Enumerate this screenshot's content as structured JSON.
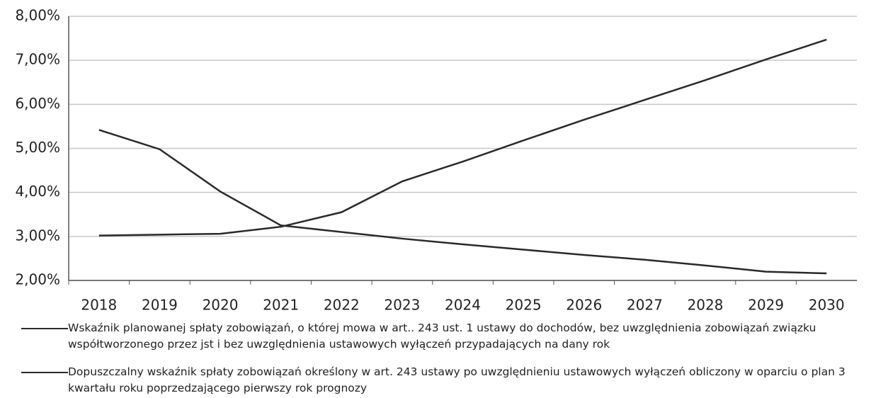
{
  "chart_data": {
    "type": "line",
    "categories": [
      "2018",
      "2019",
      "2020",
      "2021",
      "2022",
      "2023",
      "2024",
      "2025",
      "2026",
      "2027",
      "2028",
      "2029",
      "2030"
    ],
    "series": [
      {
        "name": "Wskaźnik planowanej spłaty zobowiązań, o której mowa w art.. 243 ust. 1 ustawy do dochodów, bez uwzględnienia zobowiązań związku współtworzonego przez jst i bez uwzględnienia ustawowych wyłączeń przypadających na dany rok",
        "color": "#2a2a2a",
        "values": [
          5.42,
          4.98,
          4.02,
          3.25,
          3.1,
          2.95,
          2.82,
          2.7,
          2.58,
          2.47,
          2.34,
          2.2,
          2.16
        ]
      },
      {
        "name": "Dopuszczalny wskaźnik spłaty zobowiązań określony w art. 243 ustawy po uwzględnieniu ustawowych wyłączeń obliczony w oparciu o plan 3 kwartału roku poprzedzającego pierwszy rok prognozy",
        "color": "#2a2a2a",
        "values": [
          3.02,
          3.04,
          3.06,
          3.22,
          3.55,
          4.25,
          4.7,
          5.18,
          5.65,
          6.1,
          6.55,
          7.02,
          7.47
        ]
      }
    ],
    "ylim": [
      2,
      8
    ],
    "yticks": [
      {
        "value": 2,
        "label": "2,00%"
      },
      {
        "value": 3,
        "label": "3,00%"
      },
      {
        "value": 4,
        "label": "4,00%"
      },
      {
        "value": 5,
        "label": "5,00%"
      },
      {
        "value": 6,
        "label": "6,00%"
      },
      {
        "value": 7,
        "label": "7,00%"
      },
      {
        "value": 8,
        "label": "8,00%"
      }
    ],
    "grid": true
  }
}
